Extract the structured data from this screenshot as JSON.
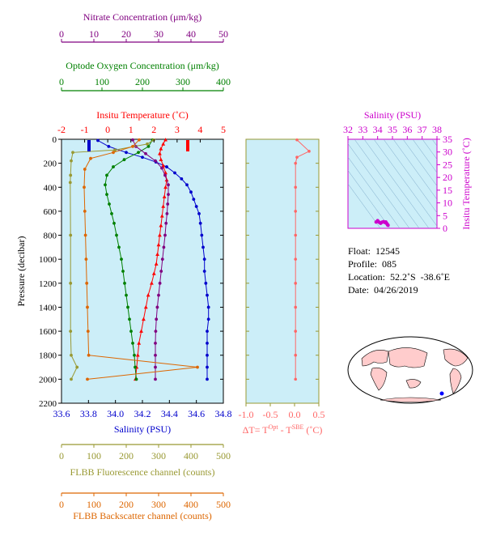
{
  "chart_data": [
    {
      "type": "line",
      "panel": "main-profile",
      "axes": {
        "pressure": {
          "label": "Pressure (decibar)",
          "range": [
            2200,
            0
          ],
          "ticks": [
            0,
            200,
            400,
            600,
            800,
            1000,
            1200,
            1400,
            1600,
            1800,
            2000,
            2200
          ]
        },
        "salinity": {
          "label": "Salinity (PSU)",
          "range": [
            33.6,
            34.8
          ],
          "ticks": [
            "33.6",
            "33.8",
            "34.0",
            "34.2",
            "34.4",
            "34.6",
            "34.8"
          ],
          "color": "#0000cc"
        },
        "temperature": {
          "label": "Insitu Temperature (˚C)",
          "range": [
            -2,
            5
          ],
          "ticks": [
            "-2",
            "-1",
            "0",
            "1",
            "2",
            "3",
            "4",
            "5"
          ],
          "color": "#ff0000"
        },
        "oxygen": {
          "label": "Optode Oxygen Concentration (μm/kg)",
          "range": [
            0,
            400
          ],
          "ticks": [
            "0",
            "100",
            "200",
            "300",
            "400"
          ],
          "color": "#008000"
        },
        "nitrate": {
          "label": "Nitrate Concentration (μm/kg)",
          "range": [
            0,
            50
          ],
          "ticks": [
            "0",
            "10",
            "20",
            "30",
            "40",
            "50"
          ],
          "color": "#800080"
        },
        "fluorescence": {
          "label": "FLBB Fluorescence channel (counts)",
          "range": [
            0,
            500
          ],
          "ticks": [
            "0",
            "100",
            "200",
            "300",
            "400",
            "500"
          ],
          "color": "#999933"
        },
        "backscatter": {
          "label": "FLBB Backscatter channel (counts)",
          "range": [
            0,
            500
          ],
          "ticks": [
            "0",
            "100",
            "200",
            "300",
            "400",
            "500"
          ],
          "color": "#dd6600"
        }
      },
      "series": [
        {
          "key": "salinity",
          "color": "#0000cc",
          "marker": "circle",
          "points": [
            [
              33.87,
              10
            ],
            [
              33.95,
              60
            ],
            [
              34.08,
              110
            ],
            [
              34.2,
              150
            ],
            [
              34.3,
              190
            ],
            [
              34.38,
              230
            ],
            [
              34.44,
              280
            ],
            [
              34.49,
              330
            ],
            [
              34.53,
              380
            ],
            [
              34.56,
              440
            ],
            [
              34.58,
              500
            ],
            [
              34.6,
              560
            ],
            [
              34.62,
              620
            ],
            [
              34.63,
              700
            ],
            [
              34.64,
              800
            ],
            [
              34.65,
              900
            ],
            [
              34.66,
              1000
            ],
            [
              34.66,
              1100
            ],
            [
              34.67,
              1200
            ],
            [
              34.68,
              1300
            ],
            [
              34.69,
              1400
            ],
            [
              34.69,
              1500
            ],
            [
              34.68,
              1600
            ],
            [
              34.68,
              1700
            ],
            [
              34.68,
              1800
            ],
            [
              34.68,
              1900
            ],
            [
              34.68,
              2000
            ]
          ]
        },
        {
          "key": "temperature",
          "color": "#ff0000",
          "marker": "triangle",
          "points": [
            [
              2.5,
              5
            ],
            [
              2.4,
              40
            ],
            [
              2.3,
              80
            ],
            [
              2.25,
              120
            ],
            [
              2.3,
              170
            ],
            [
              2.4,
              220
            ],
            [
              2.5,
              280
            ],
            [
              2.55,
              340
            ],
            [
              2.5,
              400
            ],
            [
              2.45,
              480
            ],
            [
              2.4,
              560
            ],
            [
              2.35,
              640
            ],
            [
              2.3,
              720
            ],
            [
              2.25,
              800
            ],
            [
              2.2,
              880
            ],
            [
              2.15,
              960
            ],
            [
              2.1,
              1040
            ],
            [
              2.0,
              1120
            ],
            [
              1.9,
              1200
            ],
            [
              1.75,
              1300
            ],
            [
              1.65,
              1400
            ],
            [
              1.55,
              1500
            ],
            [
              1.45,
              1600
            ],
            [
              1.35,
              1700
            ],
            [
              1.3,
              1800
            ],
            [
              1.25,
              1900
            ],
            [
              1.2,
              2000
            ]
          ]
        },
        {
          "key": "oxygen",
          "color": "#008000",
          "marker": "circle",
          "points": [
            [
              225,
              5
            ],
            [
              215,
              60
            ],
            [
              190,
              110
            ],
            [
              155,
              170
            ],
            [
              128,
              230
            ],
            [
              112,
              300
            ],
            [
              108,
              380
            ],
            [
              112,
              460
            ],
            [
              118,
              540
            ],
            [
              124,
              620
            ],
            [
              130,
              700
            ],
            [
              136,
              800
            ],
            [
              142,
              900
            ],
            [
              148,
              1000
            ],
            [
              152,
              1100
            ],
            [
              156,
              1200
            ],
            [
              160,
              1300
            ],
            [
              164,
              1400
            ],
            [
              168,
              1500
            ],
            [
              172,
              1600
            ],
            [
              176,
              1700
            ],
            [
              180,
              1800
            ],
            [
              182,
              1900
            ],
            [
              185,
              2000
            ]
          ]
        },
        {
          "key": "nitrate",
          "color": "#800080",
          "marker": "circle",
          "points": [
            [
              22,
              5
            ],
            [
              23,
              60
            ],
            [
              26,
              120
            ],
            [
              29,
              180
            ],
            [
              31,
              240
            ],
            [
              32,
              300
            ],
            [
              33,
              380
            ],
            [
              33,
              460
            ],
            [
              32.8,
              540
            ],
            [
              32.6,
              620
            ],
            [
              32.3,
              700
            ],
            [
              32,
              800
            ],
            [
              31.6,
              900
            ],
            [
              31.2,
              1000
            ],
            [
              30.8,
              1100
            ],
            [
              30.4,
              1200
            ],
            [
              30,
              1300
            ],
            [
              29.6,
              1400
            ],
            [
              29.3,
              1500
            ],
            [
              29.1,
              1600
            ],
            [
              29,
              1700
            ],
            [
              29,
              1800
            ],
            [
              29,
              1900
            ],
            [
              29,
              2000
            ]
          ]
        },
        {
          "key": "fluorescence",
          "color": "#999933",
          "marker": "circle",
          "points": [
            [
              285,
              5
            ],
            [
              265,
              40
            ],
            [
              165,
              90
            ],
            [
              35,
              110
            ],
            [
              30,
              180
            ],
            [
              28,
              300
            ],
            [
              27,
              360
            ],
            [
              28,
              800
            ],
            [
              28,
              1200
            ],
            [
              28,
              1600
            ],
            [
              30,
              1800
            ],
            [
              48,
              1900
            ],
            [
              30,
              2000
            ]
          ]
        },
        {
          "key": "backscatter",
          "color": "#dd6600",
          "marker": "circle",
          "points": [
            [
              240,
              5
            ],
            [
              220,
              60
            ],
            [
              160,
              110
            ],
            [
              90,
              160
            ],
            [
              72,
              250
            ],
            [
              70,
              400
            ],
            [
              72,
              600
            ],
            [
              74,
              800
            ],
            [
              76,
              1000
            ],
            [
              78,
              1200
            ],
            [
              80,
              1400
            ],
            [
              82,
              1600
            ],
            [
              84,
              1800
            ],
            [
              420,
              1900
            ],
            [
              80,
              2000
            ]
          ]
        }
      ]
    },
    {
      "type": "line",
      "panel": "delta-t",
      "xlabel": "ΔT= T",
      "xlabel_sup1": "Opt",
      "xlabel_mid": " - T",
      "xlabel_sup2": "SBE",
      "xlabel_tail": " (˚C)",
      "xrange": [
        -1.0,
        0.5
      ],
      "xticks": [
        "-1.0",
        "-0.5",
        "0.0",
        "0.5"
      ],
      "yrange": [
        2200,
        0
      ],
      "color": "#ff6666",
      "points": [
        [
          0.05,
          5
        ],
        [
          0.3,
          100
        ],
        [
          0.05,
          150
        ],
        [
          0.02,
          200
        ],
        [
          0.02,
          400
        ],
        [
          0.02,
          600
        ],
        [
          0.02,
          800
        ],
        [
          0.02,
          1000
        ],
        [
          0.02,
          1200
        ],
        [
          0.02,
          1400
        ],
        [
          0.02,
          1600
        ],
        [
          0.02,
          1800
        ],
        [
          0.02,
          2000
        ]
      ]
    },
    {
      "type": "scatter",
      "panel": "ts-diagram",
      "xlabel": "Salinity (PSU)",
      "ylabel": "Insitu Temperature (˚C)",
      "xrange": [
        32,
        38
      ],
      "xticks": [
        "32",
        "33",
        "34",
        "35",
        "36",
        "37",
        "38"
      ],
      "yrange": [
        0,
        35
      ],
      "yticks": [
        "0",
        "5",
        "10",
        "15",
        "20",
        "25",
        "30",
        "35"
      ],
      "color": "#cc00cc",
      "points": [
        [
          33.9,
          2.5
        ],
        [
          34.0,
          3.0
        ],
        [
          34.1,
          2.4
        ],
        [
          34.2,
          2.0
        ],
        [
          34.3,
          2.4
        ],
        [
          34.4,
          2.6
        ],
        [
          34.5,
          2.3
        ],
        [
          34.6,
          2.0
        ],
        [
          34.65,
          1.6
        ],
        [
          34.68,
          1.3
        ],
        [
          34.7,
          1.2
        ],
        [
          34.55,
          2.5
        ]
      ]
    }
  ],
  "info": {
    "float": "Float:  12545",
    "profile": "Profile:  085",
    "location": "Location:  52.2˚S  -38.6˚E",
    "date": "Date:  04/26/2019"
  },
  "map": {
    "marker_color": "#0000ff"
  }
}
